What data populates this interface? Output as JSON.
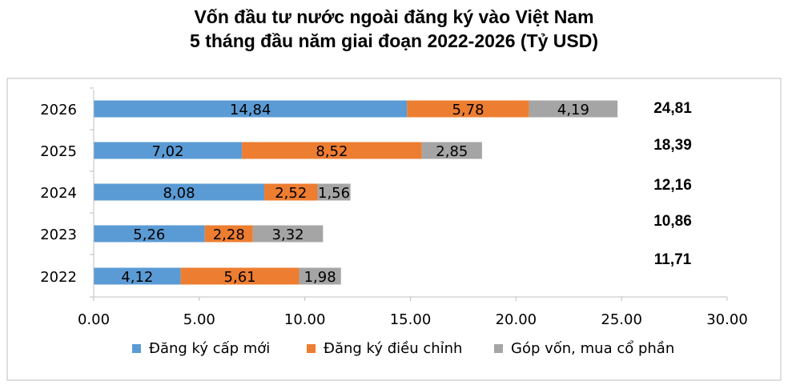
{
  "chart_data": {
    "type": "bar",
    "orientation": "horizontal",
    "stacked": true,
    "title_lines": [
      "Vốn đầu tư nước ngoài đăng ký vào Việt Nam",
      "5 tháng đầu năm giai đoạn 2022-2026 (Tỷ USD)"
    ],
    "categories": [
      "2026",
      "2025",
      "2024",
      "2023",
      "2022"
    ],
    "series": [
      {
        "name": "Đăng ký cấp mới",
        "color": "#5B9BD5",
        "values": [
          14.84,
          7.02,
          8.08,
          5.26,
          4.12
        ],
        "labels": [
          "14,84",
          "7,02",
          "8,08",
          "5,26",
          "4,12"
        ]
      },
      {
        "name": "Đăng ký điều chỉnh",
        "color": "#ED7D31",
        "values": [
          5.78,
          8.52,
          2.52,
          2.28,
          5.61
        ],
        "labels": [
          "5,78",
          "8,52",
          "2,52",
          "2,28",
          "5,61"
        ]
      },
      {
        "name": "Góp vốn, mua cổ phần",
        "color": "#A5A5A5",
        "values": [
          4.19,
          2.85,
          1.56,
          3.32,
          1.98
        ],
        "labels": [
          "4,19",
          "2,85",
          "1,56",
          "3,32",
          "1,98"
        ]
      }
    ],
    "totals": [
      "24,81",
      "18,39",
      "12,16",
      "10,86",
      "11,71"
    ],
    "xlim": [
      0,
      30
    ],
    "xticks": [
      "0.00",
      "5.00",
      "10.00",
      "15.00",
      "20.00",
      "25.00",
      "30.00"
    ],
    "xtick_values": [
      0,
      5,
      10,
      15,
      20,
      25,
      30
    ],
    "grid": false,
    "legend_position": "bottom"
  }
}
